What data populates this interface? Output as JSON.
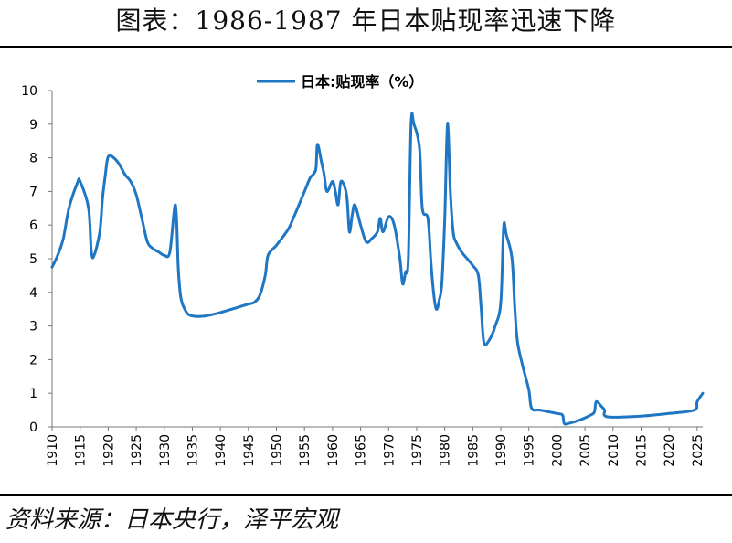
{
  "header": {
    "title": "图表：1986-1987 年日本贴现率迅速下降"
  },
  "footer": {
    "source": "资料来源：日本央行，泽平宏观"
  },
  "chart_data": {
    "type": "line",
    "title": "图表：1986-1987 年日本贴现率迅速下降",
    "xlabel": "",
    "ylabel": "",
    "xlim": [
      1910,
      2026
    ],
    "ylim": [
      0,
      10
    ],
    "x_ticks": [
      1910,
      1915,
      1920,
      1925,
      1930,
      1935,
      1940,
      1945,
      1950,
      1955,
      1960,
      1965,
      1970,
      1975,
      1980,
      1985,
      1990,
      1995,
      2000,
      2005,
      2010,
      2015,
      2020,
      2025
    ],
    "y_ticks": [
      0,
      1,
      2,
      3,
      4,
      5,
      6,
      7,
      8,
      9,
      10
    ],
    "grid": false,
    "legend_position": "top-center",
    "series": [
      {
        "name": "日本:贴现率（%）",
        "color": "#1f77c4",
        "points": [
          [
            1910.0,
            4.75
          ],
          [
            1911.0,
            5.1
          ],
          [
            1912.0,
            5.6
          ],
          [
            1913.0,
            6.5
          ],
          [
            1914.5,
            7.25
          ],
          [
            1915.0,
            7.3
          ],
          [
            1916.5,
            6.5
          ],
          [
            1917.0,
            5.2
          ],
          [
            1917.5,
            5.1
          ],
          [
            1918.5,
            5.8
          ],
          [
            1919.0,
            6.8
          ],
          [
            1919.5,
            7.5
          ],
          [
            1920.0,
            8.03
          ],
          [
            1921.0,
            8.0
          ],
          [
            1922.0,
            7.8
          ],
          [
            1923.0,
            7.5
          ],
          [
            1924.0,
            7.3
          ],
          [
            1925.0,
            6.9
          ],
          [
            1926.0,
            6.2
          ],
          [
            1927.0,
            5.5
          ],
          [
            1928.0,
            5.3
          ],
          [
            1929.0,
            5.2
          ],
          [
            1930.0,
            5.1
          ],
          [
            1931.0,
            5.2
          ],
          [
            1932.0,
            6.6
          ],
          [
            1932.5,
            4.7
          ],
          [
            1933.0,
            3.8
          ],
          [
            1934.0,
            3.4
          ],
          [
            1935.0,
            3.3
          ],
          [
            1937.0,
            3.29
          ],
          [
            1940.0,
            3.4
          ],
          [
            1943.0,
            3.55
          ],
          [
            1945.0,
            3.65
          ],
          [
            1946.0,
            3.7
          ],
          [
            1947.0,
            3.9
          ],
          [
            1948.0,
            4.5
          ],
          [
            1948.5,
            5.1
          ],
          [
            1950.0,
            5.4
          ],
          [
            1952.0,
            5.85
          ],
          [
            1953.0,
            6.2
          ],
          [
            1954.0,
            6.6
          ],
          [
            1955.0,
            7.0
          ],
          [
            1956.0,
            7.4
          ],
          [
            1957.0,
            7.65
          ],
          [
            1957.3,
            8.4
          ],
          [
            1958.0,
            7.9
          ],
          [
            1958.5,
            7.5
          ],
          [
            1959.0,
            7.0
          ],
          [
            1960.0,
            7.3
          ],
          [
            1960.5,
            7.0
          ],
          [
            1961.0,
            6.6
          ],
          [
            1961.5,
            7.3
          ],
          [
            1962.5,
            6.9
          ],
          [
            1963.0,
            5.8
          ],
          [
            1963.5,
            6.3
          ],
          [
            1964.0,
            6.6
          ],
          [
            1965.0,
            6.0
          ],
          [
            1966.0,
            5.5
          ],
          [
            1967.0,
            5.6
          ],
          [
            1968.0,
            5.8
          ],
          [
            1968.5,
            6.2
          ],
          [
            1969.0,
            5.8
          ],
          [
            1970.0,
            6.25
          ],
          [
            1971.0,
            6.0
          ],
          [
            1972.0,
            5.0
          ],
          [
            1972.5,
            4.25
          ],
          [
            1973.0,
            4.6
          ],
          [
            1973.5,
            5.0
          ],
          [
            1974.0,
            9.0
          ],
          [
            1974.5,
            9.0
          ],
          [
            1975.5,
            8.3
          ],
          [
            1976.0,
            6.5
          ],
          [
            1977.0,
            6.2
          ],
          [
            1977.5,
            5.0
          ],
          [
            1978.0,
            4.0
          ],
          [
            1978.5,
            3.5
          ],
          [
            1979.0,
            3.75
          ],
          [
            1979.5,
            4.3
          ],
          [
            1980.0,
            6.2
          ],
          [
            1980.5,
            9.0
          ],
          [
            1981.0,
            7.0
          ],
          [
            1981.5,
            5.8
          ],
          [
            1982.0,
            5.5
          ],
          [
            1983.0,
            5.2
          ],
          [
            1984.0,
            5.0
          ],
          [
            1985.0,
            4.8
          ],
          [
            1986.0,
            4.5
          ],
          [
            1986.5,
            3.5
          ],
          [
            1987.0,
            2.5
          ],
          [
            1988.0,
            2.6
          ],
          [
            1989.0,
            3.0
          ],
          [
            1990.0,
            3.7
          ],
          [
            1990.5,
            5.95
          ],
          [
            1991.0,
            5.7
          ],
          [
            1992.0,
            5.0
          ],
          [
            1992.5,
            3.5
          ],
          [
            1993.0,
            2.5
          ],
          [
            1994.0,
            1.75
          ],
          [
            1995.0,
            1.1
          ],
          [
            1995.5,
            0.55
          ],
          [
            1997.0,
            0.5
          ],
          [
            2000.0,
            0.4
          ],
          [
            2001.0,
            0.35
          ],
          [
            2001.3,
            0.1
          ],
          [
            2002.0,
            0.1
          ],
          [
            2004.0,
            0.2
          ],
          [
            2006.0,
            0.35
          ],
          [
            2006.7,
            0.45
          ],
          [
            2007.0,
            0.75
          ],
          [
            2008.0,
            0.6
          ],
          [
            2008.5,
            0.5
          ],
          [
            2009.0,
            0.3
          ],
          [
            2015.0,
            0.32
          ],
          [
            2020.0,
            0.4
          ],
          [
            2024.5,
            0.5
          ],
          [
            2025.0,
            0.75
          ],
          [
            2026.0,
            1.0
          ]
        ]
      }
    ]
  }
}
